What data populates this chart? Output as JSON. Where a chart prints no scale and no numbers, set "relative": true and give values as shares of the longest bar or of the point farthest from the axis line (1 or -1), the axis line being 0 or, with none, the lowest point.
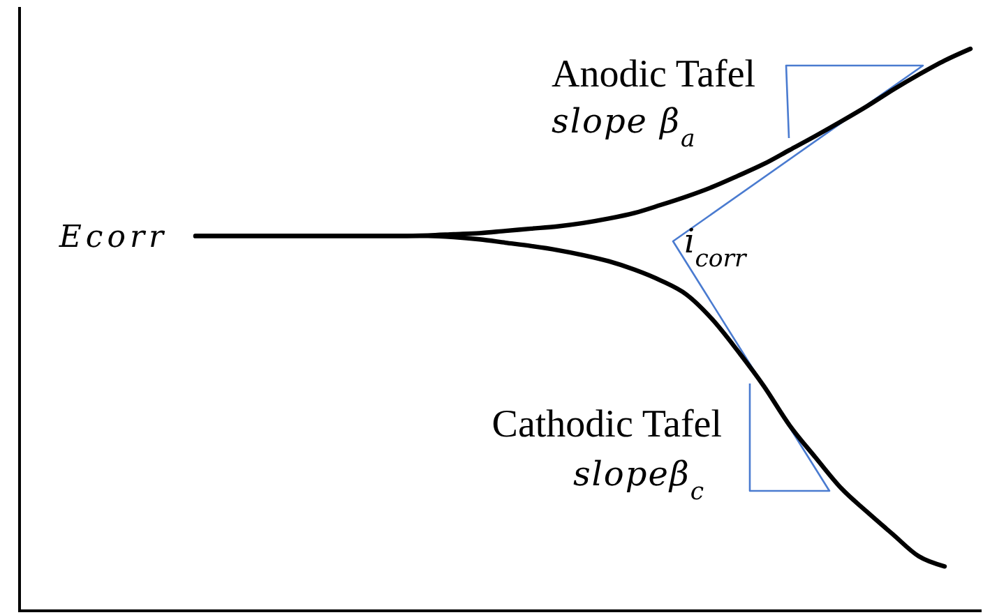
{
  "chart_data": {
    "type": "line",
    "relative": true,
    "categories": [
      null,
      null,
      null,
      null,
      null,
      null,
      null,
      null,
      null,
      null,
      null,
      null,
      null,
      null,
      null,
      null,
      null,
      null,
      null,
      null,
      null,
      null,
      null,
      null,
      null,
      null,
      null,
      null,
      null,
      null,
      null
    ],
    "series": [
      {
        "color": "#000000",
        "values": [
          0.667,
          0.667,
          0.667,
          0.667,
          0.667,
          0.667,
          0.667,
          0.667,
          0.667,
          0.668,
          0.67,
          0.672,
          0.676,
          0.68,
          0.684,
          0.69,
          0.698,
          0.708,
          0.722,
          0.737,
          0.754,
          0.774,
          0.795,
          0.82,
          0.845,
          0.871,
          0.898,
          0.927,
          0.954,
          0.979,
          1
        ]
      },
      {
        "color": "#000000",
        "values": [
          0.667,
          0.667,
          0.667,
          0.667,
          0.667,
          0.667,
          0.667,
          0.667,
          0.667,
          0.667,
          0.665,
          0.661,
          0.655,
          0.649,
          0.642,
          0.633,
          0.622,
          0.607,
          0.588,
          0.563,
          0.519,
          0.462,
          0.4,
          0.33,
          0.273,
          0.218,
          0.176,
          0.136,
          0.097,
          0.079,
          null
        ]
      }
    ],
    "annotations": [
      "Ecorr",
      "Anodic Tafel",
      "slope β$_{a}$",
      "i$_{corr}$",
      "Cathodic Tafel",
      "slopeβ$_{c}$"
    ]
  }
}
